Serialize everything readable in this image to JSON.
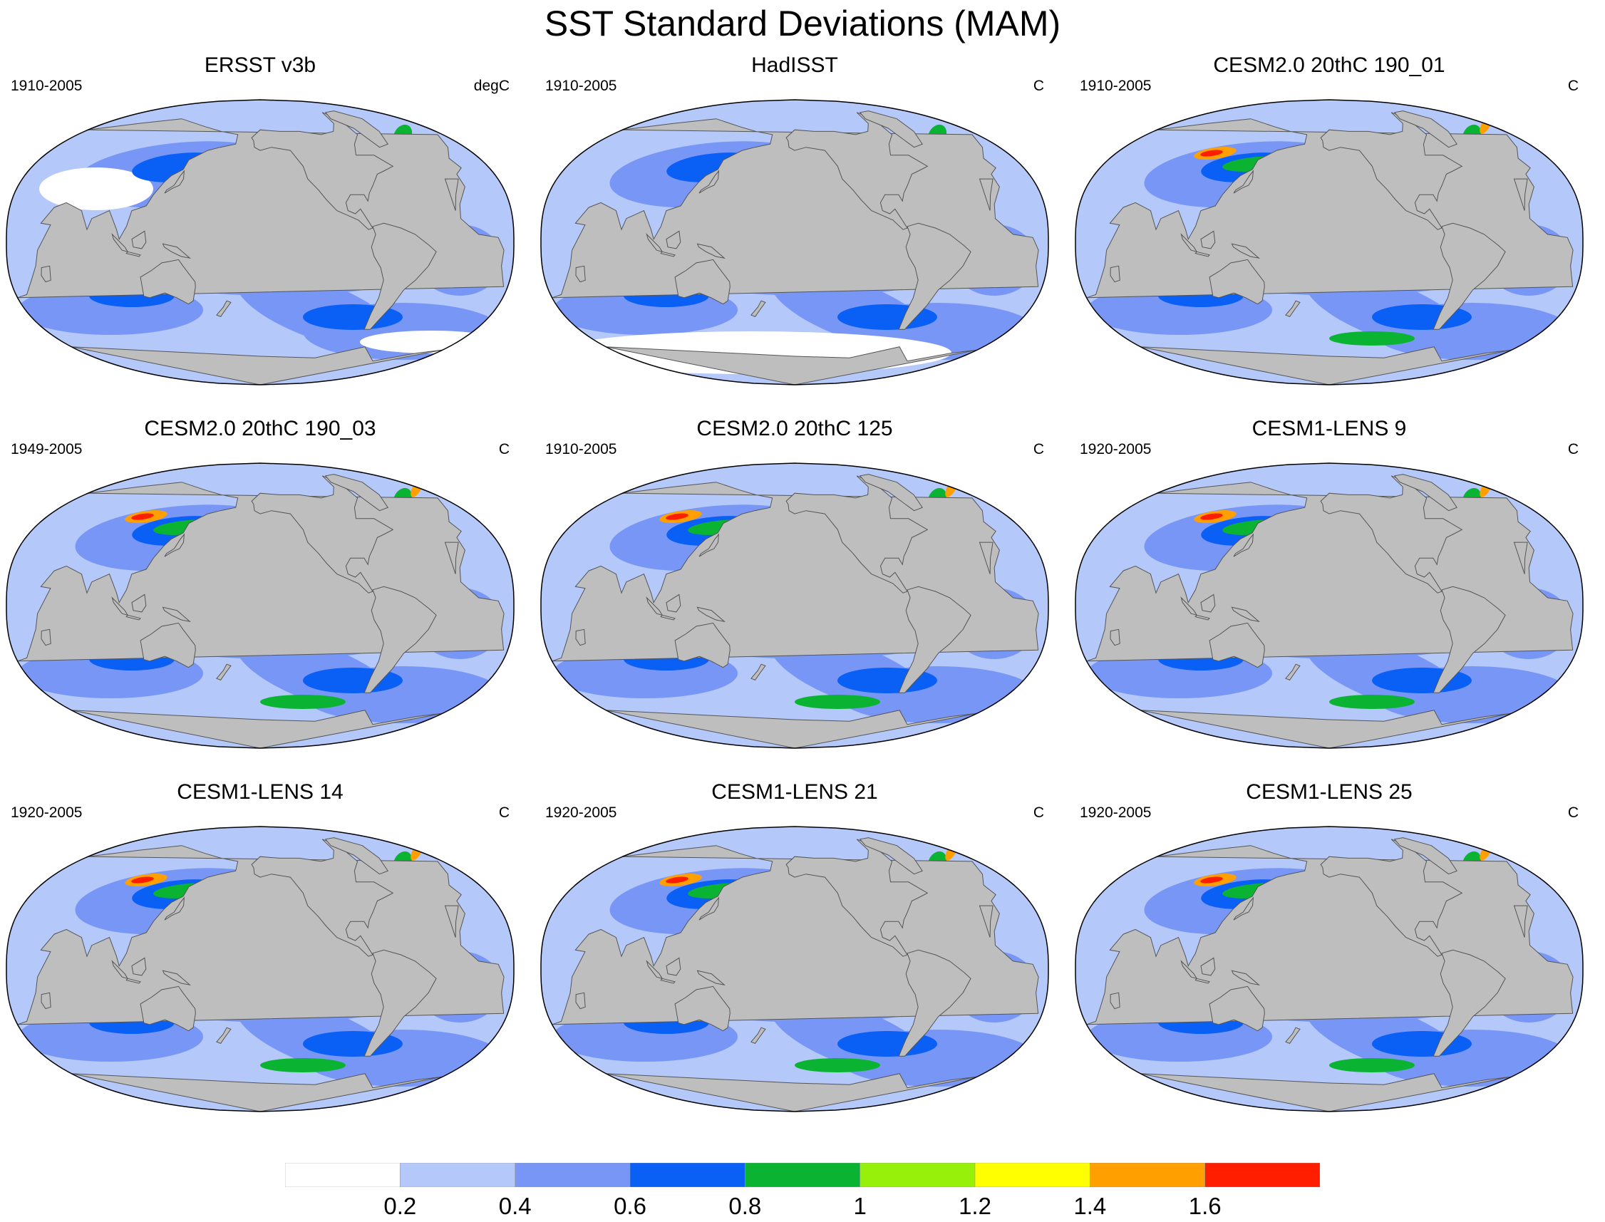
{
  "figure": {
    "title": "SST Standard Deviations (MAM)"
  },
  "panels": [
    {
      "title": "ERSST v3b",
      "period": "1910-2005",
      "units": "degC",
      "style": "obs1"
    },
    {
      "title": "HadISST",
      "period": "1910-2005",
      "units": "C",
      "style": "obs2"
    },
    {
      "title": "CESM2.0 20thC 190_01",
      "period": "1910-2005",
      "units": "C",
      "style": "model"
    },
    {
      "title": "CESM2.0 20thC 190_03",
      "period": "1949-2005",
      "units": "C",
      "style": "model"
    },
    {
      "title": "CESM2.0 20thC 125",
      "period": "1910-2005",
      "units": "C",
      "style": "model"
    },
    {
      "title": "CESM1-LENS 9",
      "period": "1920-2005",
      "units": "C",
      "style": "model"
    },
    {
      "title": "CESM1-LENS 14",
      "period": "1920-2005",
      "units": "C",
      "style": "model"
    },
    {
      "title": "CESM1-LENS 21",
      "period": "1920-2005",
      "units": "C",
      "style": "model"
    },
    {
      "title": "CESM1-LENS 25",
      "period": "1920-2005",
      "units": "C",
      "style": "model"
    }
  ],
  "colorbar": {
    "labels": [
      "0.2",
      "0.4",
      "0.6",
      "0.8",
      "1",
      "1.2",
      "1.4",
      "1.6"
    ],
    "colors": [
      "#ffffff",
      "#b4c8fa",
      "#7896f5",
      "#0a5ff5",
      "#0ab432",
      "#96f00a",
      "#ffff00",
      "#ffa000",
      "#ff1e00"
    ]
  },
  "colors": {
    "land": "#bebebe",
    "coast": "#555555"
  }
}
